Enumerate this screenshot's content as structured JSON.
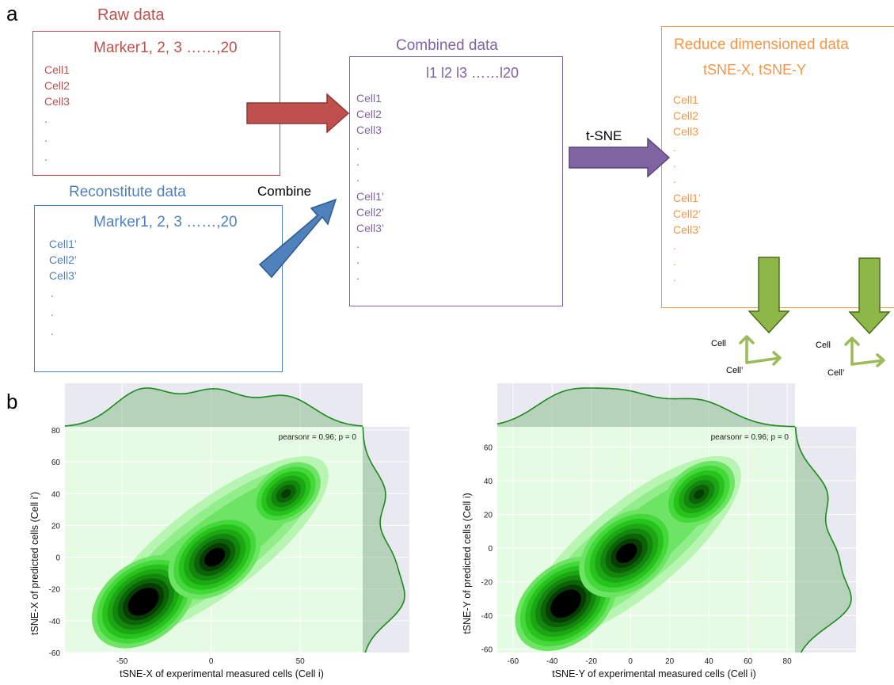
{
  "panel_a": {
    "letter": "a",
    "raw": {
      "title": "Raw data",
      "header": "Marker1,  2, 3 ……,20",
      "rows": [
        "Cell1",
        "Cell2",
        "Cell3",
        ".",
        ".",
        "."
      ],
      "color": "#c0504d"
    },
    "recon": {
      "title": "Reconstitute data",
      "header": "Marker1,  2, 3 ……,20",
      "rows": [
        "Cell1’",
        "Cell2’",
        "Cell3’",
        ".",
        ".",
        "."
      ],
      "color": "#4f81bd"
    },
    "combined": {
      "title": "Combined data",
      "header": "l1   l2   l3 ……l20",
      "rows": [
        "Cell1",
        "Cell2",
        "Cell3",
        ".",
        ".",
        ".",
        "Cell1’",
        "Cell2’",
        "Cell3’",
        ".",
        ".",
        "."
      ],
      "color": "#8064a2"
    },
    "reduced": {
      "title": "Reduce dimensioned data",
      "header": "tSNE-X,      tSNE-Y",
      "rows": [
        "Cell1",
        "Cell2",
        "Cell3",
        ".",
        ".",
        ".",
        "Cell1’",
        "Cell2’",
        "Cell3’",
        ".",
        ".",
        "."
      ],
      "color": "#f79646"
    },
    "combine_label": "Combine",
    "tsne_label": "t-SNE",
    "mini_axes": [
      {
        "y_label": "Cell",
        "x_label": "Cell’"
      },
      {
        "y_label": "Cell",
        "x_label": "Cell’"
      }
    ],
    "arrow_colors": {
      "red": "#c0504d",
      "blue": "#4f81bd",
      "purple": "#8064a2",
      "green": "#8db848",
      "light_green": "#9bbb59"
    }
  },
  "panel_b": {
    "letter": "b",
    "colors": {
      "plot_bg": "#e6fbe4",
      "margin_bg": "#e9e9f1",
      "kde_line": "#1c8a1c",
      "kde_fill": "#8cbf8c",
      "contour_light": "#b4f5b0",
      "contour_dark": "#000000"
    }
  },
  "chart_data": [
    {
      "type": "heatmap",
      "subtype": "joint kde",
      "annotation": "pearsonr = 0.96; p = 0",
      "xlabel": "tSNE-X of experimental measured cells (Cell i)",
      "ylabel": "tSNE-X of predicted cells (Cell i')",
      "xlim": [
        -82,
        85
      ],
      "ylim": [
        -60,
        82
      ],
      "xticks": [
        -50,
        0,
        50
      ],
      "yticks": [
        -60,
        -40,
        -20,
        0,
        20,
        40,
        60,
        80
      ],
      "grid": true,
      "marginals": "top and right",
      "density_peaks": [
        {
          "x": -38,
          "y": -28,
          "weight": 1.0
        },
        {
          "x": 2,
          "y": 0,
          "weight": 0.85
        },
        {
          "x": 42,
          "y": 40,
          "weight": 0.5
        }
      ]
    },
    {
      "type": "heatmap",
      "subtype": "joint kde",
      "annotation": "pearsonr = 0.96; p = 0",
      "xlabel": "tSNE-Y of experimental measured cells (Cell i)",
      "ylabel": "tSNE-Y of predicted cells (Cell i)",
      "xlim": [
        -68,
        84
      ],
      "ylim": [
        -62,
        72
      ],
      "xticks": [
        -60,
        -40,
        -20,
        0,
        20,
        40,
        60,
        80
      ],
      "yticks": [
        -60,
        -40,
        -20,
        0,
        20,
        40,
        60
      ],
      "grid": true,
      "marginals": "top and right",
      "density_peaks": [
        {
          "x": -33,
          "y": -33,
          "weight": 1.0
        },
        {
          "x": -2,
          "y": -3,
          "weight": 0.9
        },
        {
          "x": 35,
          "y": 32,
          "weight": 0.55
        }
      ]
    }
  ]
}
